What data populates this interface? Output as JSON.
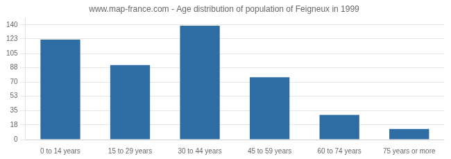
{
  "chart_data": {
    "type": "bar",
    "title": "www.map-france.com - Age distribution of population of Feigneux in 1999",
    "categories": [
      "0 to 14 years",
      "15 to 29 years",
      "30 to 44 years",
      "45 to 59 years",
      "60 to 74 years",
      "75 years or more"
    ],
    "values": [
      122,
      91,
      139,
      76,
      30,
      13
    ],
    "color": "#2e6da4",
    "ylim": [
      0,
      148
    ],
    "yticks": [
      0,
      18,
      35,
      53,
      70,
      88,
      105,
      123,
      140
    ],
    "grid": true
  }
}
